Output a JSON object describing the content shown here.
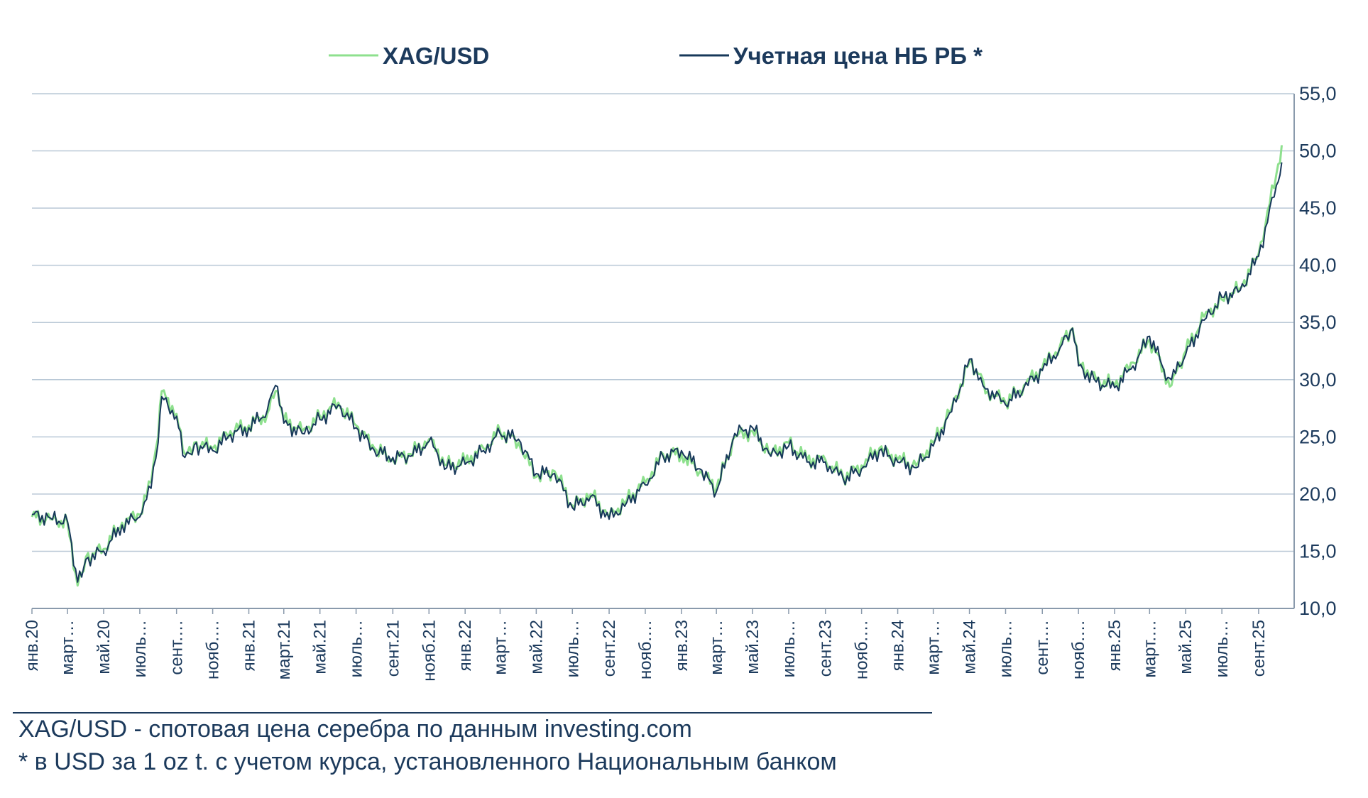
{
  "chart_data": {
    "type": "line",
    "title": "",
    "xlabel": "",
    "ylabel": "",
    "ylim": [
      10,
      55
    ],
    "yticks": [
      "10,0",
      "15,0",
      "20,0",
      "25,0",
      "30,0",
      "35,0",
      "40,0",
      "45,0",
      "50,0",
      "55,0"
    ],
    "y_axis_side": "right",
    "grid": "horizontal",
    "legend_position": "top-center",
    "x_start": "2020-01",
    "x_end": "2025-10",
    "x_tick_labels": [
      "янв.20",
      "март…",
      "май.20",
      "июль…",
      "сент.…",
      "нояб.…",
      "янв.21",
      "март.21",
      "май.21",
      "июль…",
      "сент.21",
      "нояб.21",
      "янв.22",
      "март…",
      "май.22",
      "июль…",
      "сент.22",
      "нояб.…",
      "янв.23",
      "март…",
      "май.23",
      "июль…",
      "сент.23",
      "нояб.…",
      "янв.24",
      "март…",
      "май.24",
      "июль…",
      "сент.…",
      "нояб.…",
      "янв.25",
      "март.…",
      "май.25",
      "июль…",
      "сент.25"
    ],
    "x_months": [
      "2020-01",
      "2020-03",
      "2020-05",
      "2020-07",
      "2020-09",
      "2020-11",
      "2021-01",
      "2021-03",
      "2021-05",
      "2021-07",
      "2021-09",
      "2021-11",
      "2022-01",
      "2022-03",
      "2022-05",
      "2022-07",
      "2022-09",
      "2022-11",
      "2023-01",
      "2023-03",
      "2023-05",
      "2023-07",
      "2023-09",
      "2023-11",
      "2024-01",
      "2024-03",
      "2024-05",
      "2024-07",
      "2024-09",
      "2024-11",
      "2025-01",
      "2025-03",
      "2025-05",
      "2025-07",
      "2025-09"
    ],
    "series": [
      {
        "name": "XAG/USD",
        "color": "#8ee08e",
        "x": [
          "2020-01-01",
          "2020-02-01",
          "2020-03-01",
          "2020-03-18",
          "2020-04-01",
          "2020-05-01",
          "2020-06-01",
          "2020-07-01",
          "2020-07-20",
          "2020-08-01",
          "2020-08-07",
          "2020-09-01",
          "2020-09-15",
          "2020-10-01",
          "2020-11-01",
          "2020-12-01",
          "2021-01-01",
          "2021-02-01",
          "2021-02-15",
          "2021-03-01",
          "2021-04-01",
          "2021-05-01",
          "2021-06-01",
          "2021-07-01",
          "2021-08-01",
          "2021-09-01",
          "2021-10-01",
          "2021-11-01",
          "2021-12-01",
          "2022-01-01",
          "2022-02-01",
          "2022-03-01",
          "2022-04-01",
          "2022-05-01",
          "2022-06-01",
          "2022-07-01",
          "2022-08-01",
          "2022-09-01",
          "2022-10-01",
          "2022-11-01",
          "2022-12-01",
          "2023-01-01",
          "2023-02-01",
          "2023-03-01",
          "2023-04-01",
          "2023-05-01",
          "2023-06-01",
          "2023-07-01",
          "2023-08-01",
          "2023-09-01",
          "2023-10-01",
          "2023-11-01",
          "2023-12-01",
          "2024-01-01",
          "2024-02-01",
          "2024-03-01",
          "2024-04-01",
          "2024-05-01",
          "2024-05-20",
          "2024-06-01",
          "2024-07-01",
          "2024-08-01",
          "2024-09-01",
          "2024-10-01",
          "2024-10-22",
          "2024-11-01",
          "2024-12-01",
          "2025-01-01",
          "2025-02-01",
          "2025-03-01",
          "2025-04-01",
          "2025-04-07",
          "2025-05-01",
          "2025-06-01",
          "2025-07-01",
          "2025-08-01",
          "2025-09-01",
          "2025-10-01",
          "2025-10-10"
        ],
        "values": [
          18.0,
          17.8,
          17.5,
          12.0,
          14.5,
          15.2,
          17.5,
          18.2,
          21.0,
          25.0,
          29.0,
          27.0,
          23.5,
          24.5,
          24.0,
          25.5,
          26.0,
          27.0,
          29.0,
          26.5,
          25.5,
          26.8,
          28.0,
          26.0,
          24.0,
          23.0,
          23.5,
          24.8,
          22.5,
          22.8,
          24.0,
          25.5,
          24.5,
          21.5,
          22.0,
          19.0,
          20.0,
          18.0,
          19.5,
          21.0,
          23.5,
          23.5,
          22.0,
          20.5,
          25.0,
          25.5,
          23.5,
          24.5,
          23.0,
          23.0,
          21.5,
          22.5,
          24.0,
          23.0,
          22.5,
          24.5,
          27.5,
          31.5,
          30.5,
          29.0,
          28.0,
          29.5,
          31.0,
          33.0,
          34.5,
          31.5,
          30.0,
          29.5,
          31.5,
          33.5,
          30.0,
          29.5,
          32.5,
          35.5,
          37.0,
          38.0,
          41.0,
          48.0,
          50.5
        ]
      },
      {
        "name": "Учетная цена НБ РБ *",
        "color": "#17385a",
        "x": [
          "2020-01-01",
          "2020-02-01",
          "2020-03-01",
          "2020-03-18",
          "2020-04-01",
          "2020-05-01",
          "2020-06-01",
          "2020-07-01",
          "2020-07-20",
          "2020-08-01",
          "2020-08-07",
          "2020-09-01",
          "2020-09-15",
          "2020-10-01",
          "2020-11-01",
          "2020-12-01",
          "2021-01-01",
          "2021-02-01",
          "2021-02-15",
          "2021-03-01",
          "2021-04-01",
          "2021-05-01",
          "2021-06-01",
          "2021-07-01",
          "2021-08-01",
          "2021-09-01",
          "2021-10-01",
          "2021-11-01",
          "2021-12-01",
          "2022-01-01",
          "2022-02-01",
          "2022-03-01",
          "2022-04-01",
          "2022-05-01",
          "2022-06-01",
          "2022-07-01",
          "2022-08-01",
          "2022-09-01",
          "2022-10-01",
          "2022-11-01",
          "2022-12-01",
          "2023-01-01",
          "2023-02-01",
          "2023-03-01",
          "2023-04-01",
          "2023-05-01",
          "2023-06-01",
          "2023-07-01",
          "2023-08-01",
          "2023-09-01",
          "2023-10-01",
          "2023-11-01",
          "2023-12-01",
          "2024-01-01",
          "2024-02-01",
          "2024-03-01",
          "2024-04-01",
          "2024-05-01",
          "2024-05-20",
          "2024-06-01",
          "2024-07-01",
          "2024-08-01",
          "2024-09-01",
          "2024-10-01",
          "2024-10-22",
          "2024-11-01",
          "2024-12-01",
          "2025-01-01",
          "2025-02-01",
          "2025-03-01",
          "2025-04-01",
          "2025-04-07",
          "2025-05-01",
          "2025-06-01",
          "2025-07-01",
          "2025-08-01",
          "2025-09-01",
          "2025-10-01",
          "2025-10-10"
        ],
        "values": [
          18.2,
          17.9,
          17.6,
          12.3,
          14.3,
          15.0,
          17.3,
          18.0,
          20.5,
          24.5,
          28.5,
          26.8,
          23.2,
          24.3,
          23.8,
          25.2,
          25.8,
          27.3,
          29.5,
          26.2,
          25.3,
          26.5,
          27.8,
          25.8,
          23.8,
          23.2,
          23.3,
          24.6,
          22.3,
          22.6,
          23.8,
          25.3,
          24.8,
          21.8,
          21.8,
          18.8,
          19.8,
          17.8,
          19.3,
          20.8,
          23.3,
          23.8,
          22.2,
          20.2,
          25.3,
          25.8,
          23.3,
          24.2,
          22.8,
          22.8,
          21.3,
          22.2,
          23.8,
          22.8,
          22.3,
          24.2,
          27.2,
          31.8,
          30.2,
          29.2,
          27.8,
          29.3,
          30.8,
          32.8,
          34.5,
          31.2,
          29.8,
          29.3,
          31.2,
          33.8,
          30.2,
          30.0,
          32.2,
          35.2,
          37.2,
          37.8,
          40.8,
          47.0,
          49.0
        ]
      }
    ]
  },
  "footnotes": {
    "line1": "XAG/USD - спотовая цена серебра по данным investing.com",
    "line2": "* в USD  за 1 oz t. с учетом курса, установленного Национальным банком"
  }
}
